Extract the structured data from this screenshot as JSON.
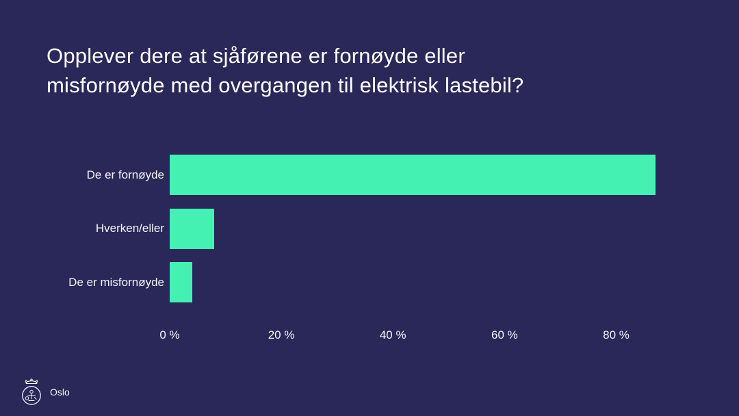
{
  "chart_data": {
    "type": "bar",
    "orientation": "horizontal",
    "title": "Opplever dere at sjåførene er fornøyde eller misfornøyde med overgangen til elektrisk lastebil?",
    "title_lines": [
      "Opplever dere at sjåførene er fornøyde eller",
      "misfornøyde med overgangen til elektrisk lastebil?"
    ],
    "categories": [
      "De er fornøyde",
      "Hverken/eller",
      "De er misfornøyde"
    ],
    "values": [
      87,
      8,
      4
    ],
    "unit": "%",
    "xlabel": "",
    "ylabel": "",
    "x_ticks": [
      0,
      20,
      40,
      60,
      80
    ],
    "x_tick_labels": [
      "0 %",
      "20 %",
      "40 %",
      "60 %",
      "80 %"
    ],
    "xlim": [
      0,
      93.7
    ],
    "grid": false,
    "legend": false,
    "data_labels": false
  },
  "colors": {
    "background": "#2A2859",
    "bar": "#44F1B3",
    "text": "#FFFFFF"
  },
  "footer": {
    "logo_text": "Oslo"
  }
}
